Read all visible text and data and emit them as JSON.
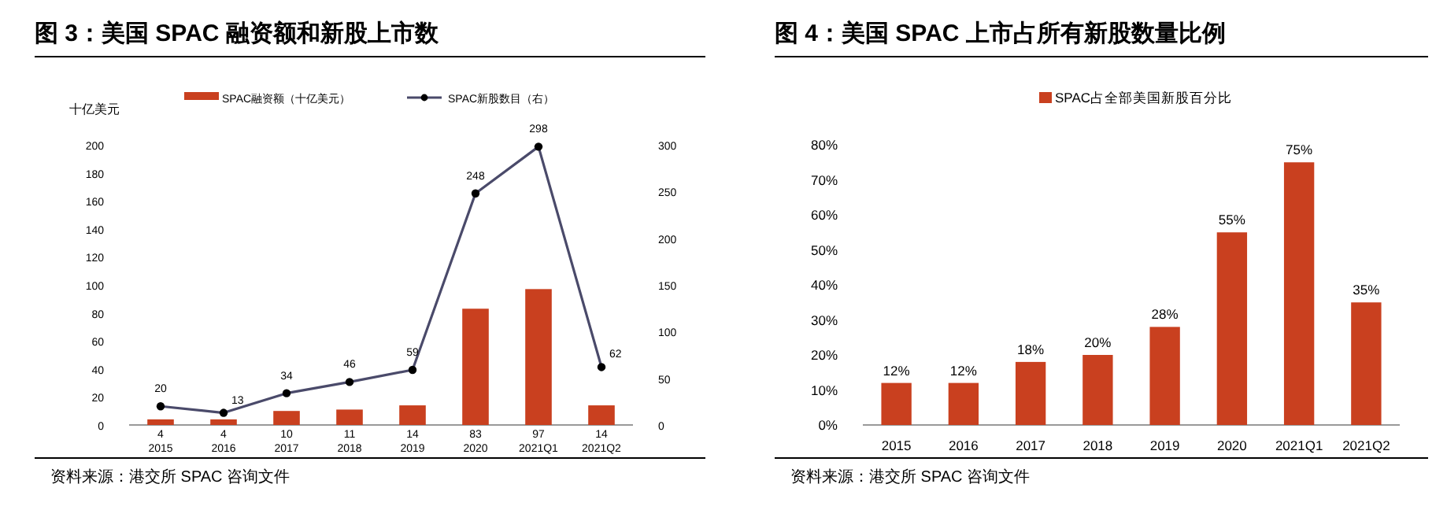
{
  "chart_data": [
    {
      "type": "bar",
      "title": "图 3：美国 SPAC 融资额和新股上市数",
      "ylabel": "十亿美元",
      "categories": [
        "2015",
        "2016",
        "2017",
        "2018",
        "2019",
        "2020",
        "2021Q1",
        "2021Q2"
      ],
      "series": [
        {
          "name": "SPAC融资额（十亿美元）",
          "color": "#c9401f",
          "values": [
            4,
            4,
            10,
            11,
            14,
            83,
            97,
            14
          ]
        },
        {
          "name": "SPAC新股数目（右）",
          "type": "line",
          "axis": "y2",
          "color": "#4a4a6a",
          "marker": "circle",
          "values": [
            20,
            13,
            34,
            46,
            59,
            248,
            298,
            62
          ]
        }
      ],
      "ylim": [
        0,
        200
      ],
      "yticks": [
        0,
        20,
        40,
        60,
        80,
        100,
        120,
        140,
        160,
        180,
        200
      ],
      "y2lim": [
        0,
        300
      ],
      "y2ticks": [
        0,
        50,
        100,
        150,
        200,
        250,
        300
      ],
      "data_labels": true,
      "legend": "top",
      "grid": false,
      "annotations": [
        "资料来源：港交所 SPAC 咨询文件"
      ]
    },
    {
      "type": "bar",
      "title": "图 4：美国 SPAC 上市占所有新股数量比例",
      "categories": [
        "2015",
        "2016",
        "2017",
        "2018",
        "2019",
        "2020",
        "2021Q1",
        "2021Q2"
      ],
      "series": [
        {
          "name": "SPAC占全部美国新股百分比",
          "color": "#c9401f",
          "values": [
            12,
            12,
            18,
            20,
            28,
            55,
            75,
            35
          ],
          "value_labels": [
            "12%",
            "12%",
            "18%",
            "20%",
            "28%",
            "55%",
            "75%",
            "35%"
          ]
        }
      ],
      "ylim": [
        0,
        80
      ],
      "yticks": [
        {
          "value": 0,
          "label": "0%"
        },
        {
          "value": 10,
          "label": "10%"
        },
        {
          "value": 20,
          "label": "20%"
        },
        {
          "value": 30,
          "label": "30%"
        },
        {
          "value": 40,
          "label": "40%"
        },
        {
          "value": 50,
          "label": "50%"
        },
        {
          "value": 60,
          "label": "60%"
        },
        {
          "value": 70,
          "label": "70%"
        },
        {
          "value": 80,
          "label": "80%"
        }
      ],
      "legend": "top",
      "grid": false,
      "annotations": [
        "资料来源：港交所 SPAC 咨询文件"
      ]
    }
  ]
}
